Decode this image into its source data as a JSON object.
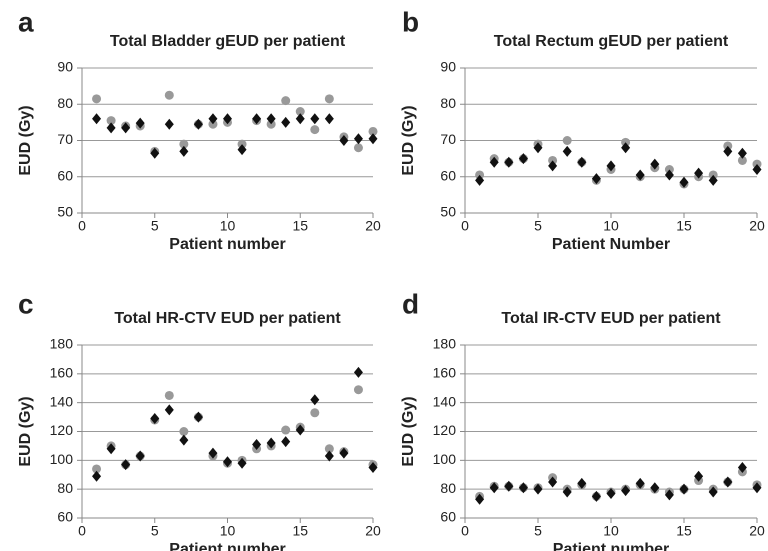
{
  "chart_data": [
    {
      "type": "scatter",
      "label": "a",
      "title": "Total Bladder gEUD per patient",
      "xlabel": "Patient number",
      "ylabel": "EUD (Gy)",
      "x": [
        1,
        2,
        3,
        4,
        5,
        6,
        7,
        8,
        9,
        10,
        11,
        12,
        13,
        14,
        15,
        16,
        17,
        18,
        19,
        20
      ],
      "series": [
        {
          "color": "#999999",
          "marker": "circle",
          "values": [
            81.5,
            75.5,
            74,
            74,
            67,
            82.5,
            69,
            74.5,
            74.5,
            75,
            69,
            75.5,
            74.5,
            81,
            78,
            73,
            81.5,
            71,
            68,
            72.5
          ]
        },
        {
          "color": "#111111",
          "marker": "diamond",
          "values": [
            76,
            73.5,
            73.5,
            74.8,
            66.5,
            74.5,
            67,
            74.5,
            76,
            76,
            67.5,
            76,
            76,
            75,
            76,
            76,
            76,
            70,
            70.5,
            70.5
          ]
        }
      ],
      "xlim": [
        0,
        20
      ],
      "xticks": [
        0,
        5,
        10,
        15,
        20
      ],
      "ylim": [
        50,
        90
      ],
      "yticks": [
        50,
        60,
        70,
        80,
        90
      ],
      "grid": true
    },
    {
      "type": "scatter",
      "label": "b",
      "title": "Total Rectum gEUD per patient",
      "xlabel": "Patient Number",
      "ylabel": "EUD (Gy)",
      "x": [
        1,
        2,
        3,
        4,
        5,
        6,
        7,
        8,
        9,
        10,
        11,
        12,
        13,
        14,
        15,
        16,
        17,
        18,
        19,
        20
      ],
      "series": [
        {
          "color": "#999999",
          "marker": "circle",
          "values": [
            60.5,
            65,
            64,
            65,
            69,
            64.5,
            70,
            64,
            59,
            62,
            69.5,
            60,
            62.5,
            62,
            58,
            60,
            60.5,
            68.5,
            64.5,
            63.5
          ]
        },
        {
          "color": "#111111",
          "marker": "diamond",
          "values": [
            59,
            64,
            64,
            65,
            68,
            63,
            67,
            64,
            59.5,
            63,
            68,
            60.5,
            63.5,
            60.5,
            58.5,
            61,
            59,
            67,
            66.5,
            62
          ]
        }
      ],
      "xlim": [
        0,
        20
      ],
      "xticks": [
        0,
        5,
        10,
        15,
        20
      ],
      "ylim": [
        50,
        90
      ],
      "yticks": [
        50,
        60,
        70,
        80,
        90
      ],
      "grid": true
    },
    {
      "type": "scatter",
      "label": "c",
      "title": "Total HR-CTV EUD per patient",
      "xlabel": "Patient number",
      "ylabel": "EUD (Gy)",
      "x": [
        1,
        2,
        3,
        4,
        5,
        6,
        7,
        8,
        9,
        10,
        11,
        12,
        13,
        14,
        15,
        16,
        17,
        18,
        19,
        20
      ],
      "series": [
        {
          "color": "#999999",
          "marker": "circle",
          "values": [
            94,
            110,
            97,
            103,
            128,
            145,
            120,
            130,
            103,
            98,
            100,
            108,
            110,
            121,
            123,
            133,
            108,
            106,
            149,
            97
          ]
        },
        {
          "color": "#111111",
          "marker": "diamond",
          "values": [
            89,
            108,
            97,
            103,
            129,
            135,
            114,
            130,
            105,
            99,
            98,
            111,
            112,
            113,
            121,
            142,
            103,
            105,
            161,
            95
          ]
        }
      ],
      "xlim": [
        0,
        20
      ],
      "xticks": [
        0,
        5,
        10,
        15,
        20
      ],
      "ylim": [
        60,
        180
      ],
      "yticks": [
        60,
        80,
        100,
        120,
        140,
        160,
        180
      ],
      "grid": true
    },
    {
      "type": "scatter",
      "label": "d",
      "title": "Total IR-CTV EUD per patient",
      "xlabel": "Patient number",
      "ylabel": "EUD (Gy)",
      "x": [
        1,
        2,
        3,
        4,
        5,
        6,
        7,
        8,
        9,
        10,
        11,
        12,
        13,
        14,
        15,
        16,
        17,
        18,
        19,
        20
      ],
      "series": [
        {
          "color": "#999999",
          "marker": "circle",
          "values": [
            75,
            82,
            82,
            81,
            81,
            88,
            80,
            83,
            75,
            78,
            80,
            83,
            80,
            78,
            80,
            86,
            80,
            85,
            92,
            83
          ]
        },
        {
          "color": "#111111",
          "marker": "diamond",
          "values": [
            73,
            81,
            82,
            81,
            80,
            85,
            78,
            84,
            75,
            77,
            79,
            84,
            81,
            76,
            80,
            89,
            78,
            85,
            95,
            81
          ]
        }
      ],
      "xlim": [
        0,
        20
      ],
      "xticks": [
        0,
        5,
        10,
        15,
        20
      ],
      "ylim": [
        60,
        180
      ],
      "yticks": [
        60,
        80,
        100,
        120,
        140,
        160,
        180
      ],
      "grid": true
    }
  ]
}
